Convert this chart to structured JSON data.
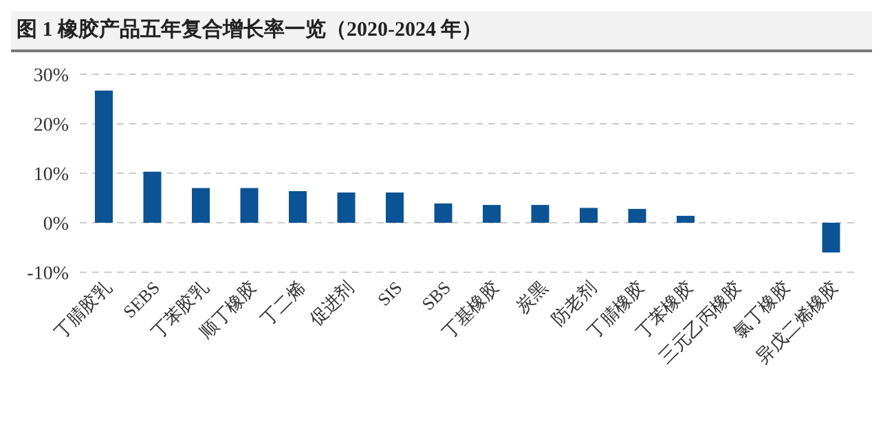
{
  "chart_data": {
    "type": "bar",
    "title": "图 1 橡胶产品五年复合增长率一览（2020-2024 年）",
    "categories": [
      "丁腈胶乳",
      "SEBS",
      "丁苯胶乳",
      "顺丁橡胶",
      "丁二烯",
      "促进剂",
      "SIS",
      "SBS",
      "丁基橡胶",
      "炭黑",
      "防老剂",
      "丁腈橡胶",
      "丁苯橡胶",
      "三元乙丙橡胶",
      "氯丁橡胶",
      "异戊二烯橡胶"
    ],
    "values": [
      26.7,
      10.3,
      7.0,
      7.0,
      6.4,
      6.1,
      6.1,
      3.9,
      3.6,
      3.6,
      3.0,
      2.8,
      1.4,
      0,
      0,
      -6.0
    ],
    "color": "#0b5394",
    "ylim": [
      -10,
      30
    ],
    "yticks": [
      {
        "value": -10,
        "label": "-10%"
      },
      {
        "value": 0,
        "label": "0%"
      },
      {
        "value": 10,
        "label": "10%"
      },
      {
        "value": 20,
        "label": "20%"
      },
      {
        "value": 30,
        "label": "30%"
      }
    ],
    "grid": "y"
  }
}
